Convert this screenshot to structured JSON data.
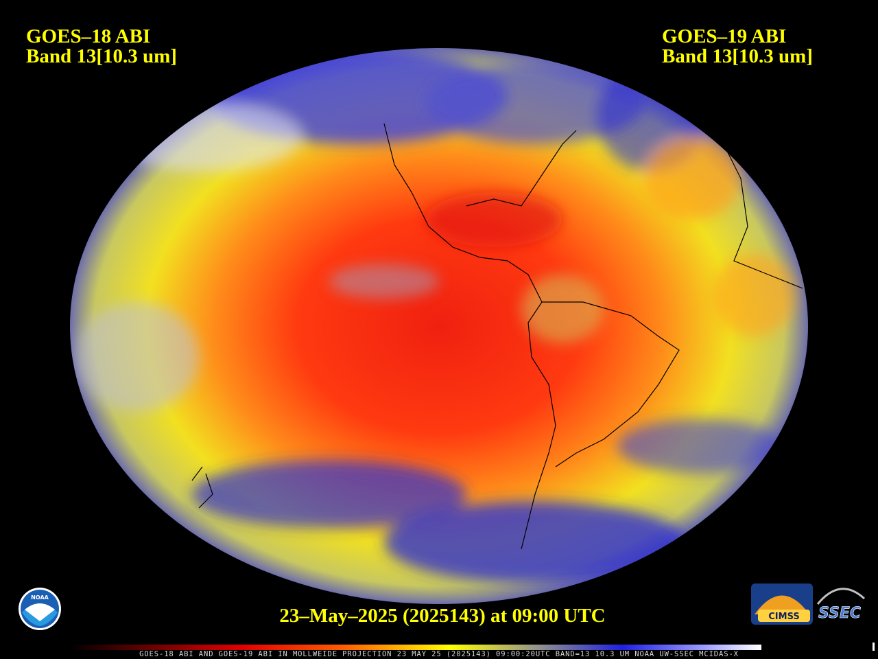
{
  "header_left": {
    "satellite": "GOES–18 ABI",
    "band": "Band 13[10.3 um]"
  },
  "header_right": {
    "satellite": "GOES–19 ABI",
    "band": "Band 13[10.3 um]"
  },
  "timestamp": "23–May–2025 (2025143) at 09:00 UTC",
  "footer": "GOES-18 ABI AND GOES-19 ABI IN MOLLWEIDE PROJECTION 23 MAY 25 (2025143) 09:00:20UTC BAND=13 10.3 UM NOAA UW-SSEC MCIDAS-X",
  "logos": {
    "noaa": "NOAA",
    "cimss": "CIMSS",
    "ssec": "SSEC"
  }
}
